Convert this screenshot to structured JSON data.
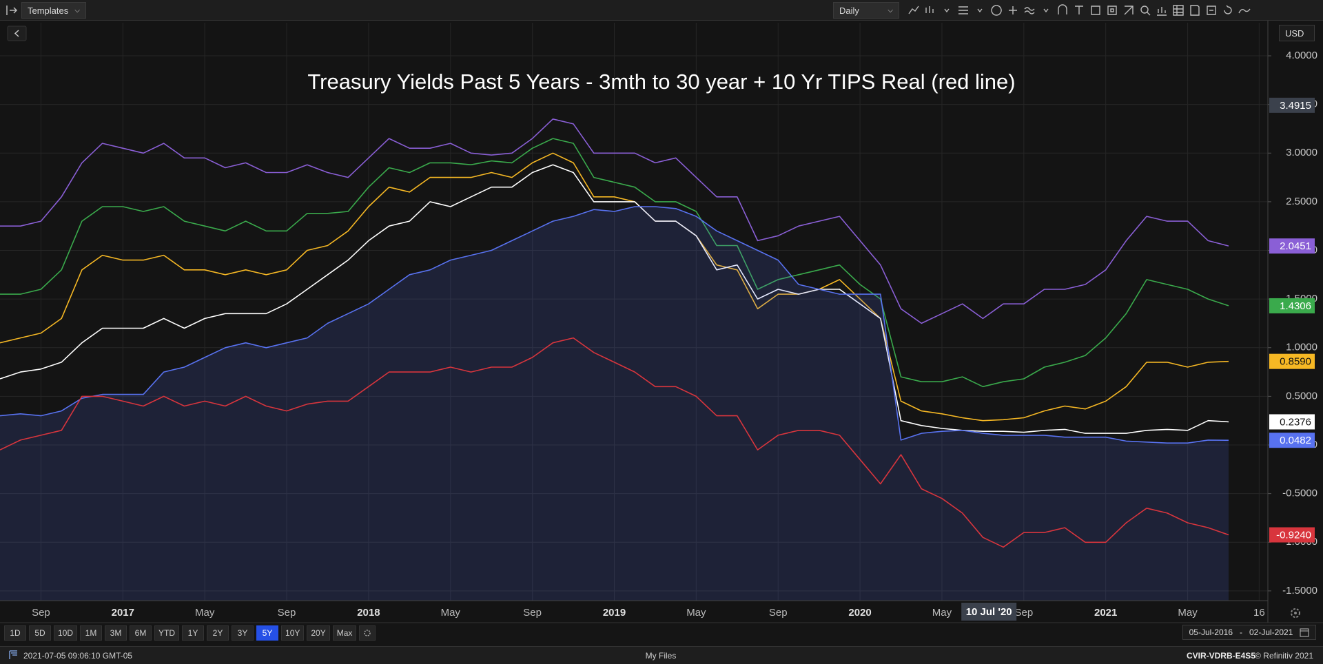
{
  "chart_data": {
    "type": "line",
    "title": "Treasury Yields Past 5 Years - 3mth to 30 year + 10 Yr TIPS Real (red line)",
    "x": [
      "2016-07",
      "2016-08",
      "2016-09",
      "2016-10",
      "2016-11",
      "2016-12",
      "2017-01",
      "2017-02",
      "2017-03",
      "2017-04",
      "2017-05",
      "2017-06",
      "2017-07",
      "2017-08",
      "2017-09",
      "2017-10",
      "2017-11",
      "2017-12",
      "2018-01",
      "2018-02",
      "2018-03",
      "2018-04",
      "2018-05",
      "2018-06",
      "2018-07",
      "2018-08",
      "2018-09",
      "2018-10",
      "2018-11",
      "2018-12",
      "2019-01",
      "2019-02",
      "2019-03",
      "2019-04",
      "2019-05",
      "2019-06",
      "2019-07",
      "2019-08",
      "2019-09",
      "2019-10",
      "2019-11",
      "2019-12",
      "2020-01",
      "2020-02",
      "2020-03",
      "2020-04",
      "2020-05",
      "2020-06",
      "2020-07",
      "2020-08",
      "2020-09",
      "2020-10",
      "2020-11",
      "2020-12",
      "2021-01",
      "2021-02",
      "2021-03",
      "2021-04",
      "2021-05",
      "2021-06",
      "2021-07"
    ],
    "series": [
      {
        "color": "#8a5fd6",
        "last_label": "2.0451",
        "values": [
          2.25,
          2.25,
          2.3,
          2.55,
          2.9,
          3.1,
          3.05,
          3.0,
          3.1,
          2.95,
          2.95,
          2.85,
          2.9,
          2.8,
          2.8,
          2.88,
          2.8,
          2.75,
          2.95,
          3.15,
          3.05,
          3.05,
          3.1,
          3.0,
          2.98,
          3.0,
          3.15,
          3.35,
          3.3,
          3.0,
          3.0,
          3.0,
          2.9,
          2.95,
          2.75,
          2.55,
          2.55,
          2.1,
          2.15,
          2.25,
          2.3,
          2.35,
          2.1,
          1.85,
          1.4,
          1.25,
          1.35,
          1.45,
          1.3,
          1.45,
          1.45,
          1.6,
          1.6,
          1.65,
          1.8,
          2.1,
          2.35,
          2.3,
          2.3,
          2.1,
          2.0451
        ]
      },
      {
        "color": "#3aaa4c",
        "last_label": "1.4306",
        "values": [
          1.55,
          1.55,
          1.6,
          1.8,
          2.3,
          2.45,
          2.45,
          2.4,
          2.45,
          2.3,
          2.25,
          2.2,
          2.3,
          2.2,
          2.2,
          2.38,
          2.38,
          2.4,
          2.65,
          2.85,
          2.8,
          2.9,
          2.9,
          2.88,
          2.92,
          2.9,
          3.05,
          3.15,
          3.1,
          2.75,
          2.7,
          2.65,
          2.5,
          2.5,
          2.4,
          2.05,
          2.05,
          1.6,
          1.7,
          1.75,
          1.8,
          1.85,
          1.65,
          1.5,
          0.7,
          0.65,
          0.65,
          0.7,
          0.6,
          0.65,
          0.68,
          0.8,
          0.85,
          0.92,
          1.1,
          1.35,
          1.7,
          1.65,
          1.6,
          1.5,
          1.4306
        ]
      },
      {
        "color": "#f6b824",
        "last_label": "0.8590",
        "values": [
          1.05,
          1.1,
          1.15,
          1.3,
          1.8,
          1.95,
          1.9,
          1.9,
          1.95,
          1.8,
          1.8,
          1.75,
          1.8,
          1.75,
          1.8,
          2.0,
          2.05,
          2.2,
          2.45,
          2.65,
          2.6,
          2.75,
          2.75,
          2.75,
          2.8,
          2.75,
          2.9,
          3.0,
          2.9,
          2.55,
          2.55,
          2.5,
          2.3,
          2.3,
          2.15,
          1.85,
          1.8,
          1.4,
          1.55,
          1.55,
          1.6,
          1.7,
          1.5,
          1.3,
          0.45,
          0.35,
          0.32,
          0.28,
          0.25,
          0.26,
          0.28,
          0.35,
          0.4,
          0.37,
          0.45,
          0.6,
          0.85,
          0.85,
          0.8,
          0.85,
          0.859
        ]
      },
      {
        "color": "#ffffff",
        "last_label": "0.2376",
        "values": [
          0.68,
          0.75,
          0.78,
          0.85,
          1.05,
          1.2,
          1.2,
          1.2,
          1.3,
          1.2,
          1.3,
          1.35,
          1.35,
          1.35,
          1.45,
          1.6,
          1.75,
          1.9,
          2.1,
          2.25,
          2.3,
          2.5,
          2.45,
          2.55,
          2.65,
          2.65,
          2.8,
          2.88,
          2.8,
          2.5,
          2.5,
          2.5,
          2.3,
          2.3,
          2.15,
          1.8,
          1.85,
          1.5,
          1.6,
          1.55,
          1.6,
          1.6,
          1.45,
          1.3,
          0.25,
          0.2,
          0.17,
          0.15,
          0.14,
          0.14,
          0.13,
          0.15,
          0.16,
          0.12,
          0.12,
          0.12,
          0.15,
          0.16,
          0.15,
          0.25,
          0.2376
        ]
      },
      {
        "color": "#5872f0",
        "area": true,
        "last_label": "0.0482",
        "values": [
          0.3,
          0.32,
          0.3,
          0.35,
          0.48,
          0.52,
          0.52,
          0.52,
          0.75,
          0.8,
          0.9,
          1.0,
          1.05,
          1.0,
          1.05,
          1.1,
          1.25,
          1.35,
          1.45,
          1.6,
          1.75,
          1.8,
          1.9,
          1.95,
          2.0,
          2.1,
          2.2,
          2.3,
          2.35,
          2.42,
          2.4,
          2.45,
          2.45,
          2.43,
          2.35,
          2.2,
          2.1,
          2.0,
          1.9,
          1.65,
          1.6,
          1.55,
          1.55,
          1.55,
          0.05,
          0.12,
          0.14,
          0.15,
          0.12,
          0.1,
          0.1,
          0.1,
          0.08,
          0.08,
          0.08,
          0.04,
          0.03,
          0.02,
          0.02,
          0.05,
          0.0482
        ]
      },
      {
        "color": "#d8353d",
        "last_label": "-0.9240",
        "values": [
          -0.05,
          0.05,
          0.1,
          0.15,
          0.5,
          0.5,
          0.45,
          0.4,
          0.5,
          0.4,
          0.45,
          0.4,
          0.5,
          0.4,
          0.35,
          0.42,
          0.45,
          0.45,
          0.6,
          0.75,
          0.75,
          0.75,
          0.8,
          0.75,
          0.8,
          0.8,
          0.9,
          1.05,
          1.1,
          0.95,
          0.85,
          0.75,
          0.6,
          0.6,
          0.5,
          0.3,
          0.3,
          -0.05,
          0.1,
          0.15,
          0.15,
          0.1,
          -0.15,
          -0.4,
          -0.1,
          -0.45,
          -0.55,
          -0.7,
          -0.95,
          -1.05,
          -0.9,
          -0.9,
          -0.85,
          -1.0,
          -1.0,
          -0.8,
          -0.65,
          -0.7,
          -0.8,
          -0.85,
          -0.924
        ]
      }
    ],
    "xlim": [
      "2016-07-01",
      "2021-08-29"
    ],
    "xticks": [
      {
        "value": "2016-09",
        "label": "Sep"
      },
      {
        "value": "2017-01",
        "label": "2017"
      },
      {
        "value": "2017-05",
        "label": "May"
      },
      {
        "value": "2017-09",
        "label": "Sep"
      },
      {
        "value": "2018-01",
        "label": "2018"
      },
      {
        "value": "2018-05",
        "label": "May"
      },
      {
        "value": "2018-09",
        "label": "Sep"
      },
      {
        "value": "2019-01",
        "label": "2019"
      },
      {
        "value": "2019-05",
        "label": "May"
      },
      {
        "value": "2019-09",
        "label": "Sep"
      },
      {
        "value": "2020-01",
        "label": "2020"
      },
      {
        "value": "2020-05",
        "label": "May"
      },
      {
        "value": "2020-09",
        "label": "Sep"
      },
      {
        "value": "2021-01",
        "label": "2021"
      },
      {
        "value": "2021-05",
        "label": "May"
      },
      {
        "value": "2021-08-16",
        "label": "16"
      }
    ],
    "ylim": [
      -1.6,
      4.34
    ],
    "yticks": [
      {
        "value": 4,
        "label": "4.0000"
      },
      {
        "value": 3.5,
        "label": "3.5000"
      },
      {
        "value": 3,
        "label": "3.0000"
      },
      {
        "value": 2.5,
        "label": "2.5000"
      },
      {
        "value": 2,
        "label": "2.0000"
      },
      {
        "value": 1.5,
        "label": "1.5000"
      },
      {
        "value": 1,
        "label": "1.0000"
      },
      {
        "value": 0.5,
        "label": "0.5000"
      },
      {
        "value": 0,
        "label": "0.0000"
      },
      {
        "value": -0.5,
        "label": "-0.5000"
      },
      {
        "value": -1,
        "label": "-1.0000"
      },
      {
        "value": -1.5,
        "label": "-1.5000"
      }
    ],
    "grid": true,
    "crosshair": {
      "x": "2020-07-10",
      "x_label": "10 Jul '20",
      "y": 3.4915
    }
  },
  "ui": {
    "templates": "Templates",
    "interval": "Daily",
    "currency": "USD",
    "periods": [
      "1D",
      "5D",
      "10D",
      "1M",
      "3M",
      "6M",
      "YTD",
      "1Y",
      "2Y",
      "3Y",
      "5Y",
      "10Y",
      "20Y",
      "Max"
    ],
    "selected_period": "5Y",
    "range_start": "05-Jul-2016",
    "range_sep": "-",
    "range_end": "02-Jul-2021",
    "timestamp": "2021-07-05 09:06:10 GMT-05",
    "files": "My Files",
    "code": "CVIR-VDRB-E4S5",
    "copyright": "© Refinitiv 2021"
  }
}
